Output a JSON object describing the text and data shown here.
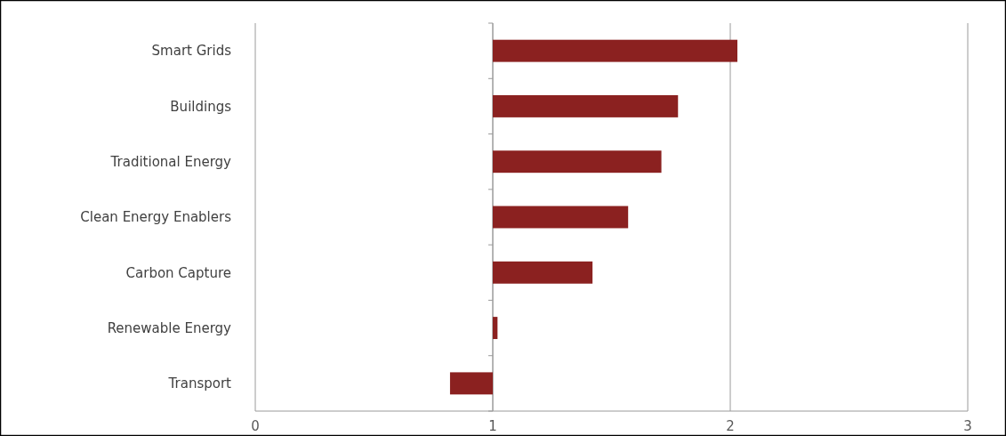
{
  "chart_data": {
    "type": "bar",
    "orientation": "horizontal",
    "categories": [
      "Smart Grids",
      "Buildings",
      "Traditional Energy",
      "Clean Energy Enablers",
      "Carbon Capture",
      "Renewable Energy",
      "Transport"
    ],
    "base": [
      1,
      1,
      1,
      1,
      1,
      1,
      1
    ],
    "values": [
      1.03,
      0.78,
      0.71,
      0.57,
      0.42,
      0.02,
      -0.18
    ],
    "color": "#8b2120",
    "xlim": [
      0,
      3
    ],
    "xticks": [
      0,
      1,
      2,
      3
    ],
    "grid": "x"
  }
}
